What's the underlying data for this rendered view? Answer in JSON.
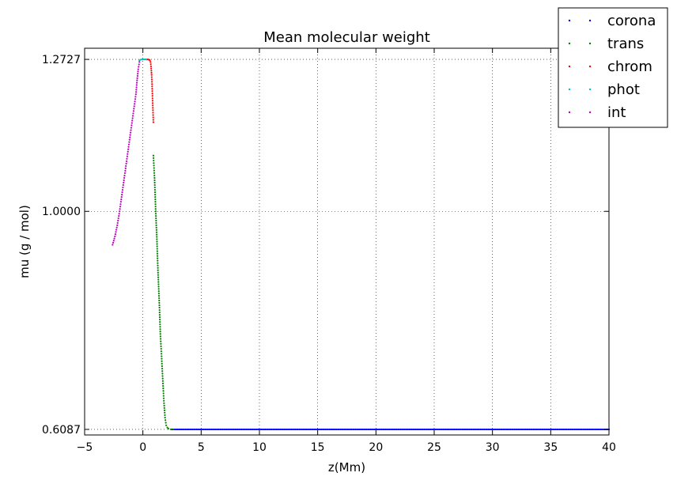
{
  "chart_data": {
    "type": "scatter",
    "title": "Mean molecular weight",
    "xlabel": "z(Mm)",
    "ylabel": "mu (g / mol)",
    "xlim": [
      -5,
      40
    ],
    "ylim": [
      0.5987,
      1.2927
    ],
    "x_ticks": [
      -5,
      0,
      5,
      10,
      15,
      20,
      25,
      30,
      35,
      40
    ],
    "x_tick_labels": [
      "−5",
      "0",
      "5",
      "10",
      "15",
      "20",
      "25",
      "30",
      "35",
      "40"
    ],
    "y_ticks": [
      0.6087,
      1.0,
      1.2727
    ],
    "y_tick_labels": [
      "0.6087",
      "1.0000",
      "1.2727"
    ],
    "grid": true,
    "legend_position": "top-right",
    "series": [
      {
        "name": "corona",
        "color": "#0000ff",
        "x": [
          2.5,
          40
        ],
        "y": [
          0.6087,
          0.6087
        ],
        "n_points": 320
      },
      {
        "name": "trans",
        "color": "#008000",
        "x": [
          0.9,
          1.0,
          1.1,
          1.2,
          1.3,
          1.4,
          1.5,
          1.6,
          1.7,
          1.8,
          1.9,
          2.0,
          2.1,
          2.2,
          2.4,
          2.6
        ],
        "y": [
          1.1,
          1.06,
          1.0,
          0.95,
          0.89,
          0.84,
          0.78,
          0.74,
          0.7,
          0.66,
          0.63,
          0.616,
          0.612,
          0.61,
          0.6089,
          0.6087
        ]
      },
      {
        "name": "chrom",
        "color": "#ff0000",
        "x": [
          0.35,
          0.45,
          0.55,
          0.6,
          0.65,
          0.7,
          0.75,
          0.8,
          0.85,
          0.9
        ],
        "y": [
          1.2727,
          1.2725,
          1.272,
          1.271,
          1.268,
          1.26,
          1.245,
          1.22,
          1.19,
          1.16
        ]
      },
      {
        "name": "phot",
        "color": "#00bfbf",
        "x": [
          -0.3,
          -0.2,
          -0.1,
          0.0,
          0.1,
          0.2,
          0.3
        ],
        "y": [
          1.271,
          1.272,
          1.2727,
          1.2727,
          1.2727,
          1.2727,
          1.2727
        ]
      },
      {
        "name": "int",
        "color": "#bf00bf",
        "x": [
          -2.6,
          -2.4,
          -2.2,
          -2.0,
          -1.8,
          -1.6,
          -1.4,
          -1.2,
          -1.0,
          -0.8,
          -0.6,
          -0.5,
          -0.4,
          -0.3
        ],
        "y": [
          0.94,
          0.955,
          0.975,
          1.0,
          1.03,
          1.06,
          1.09,
          1.12,
          1.15,
          1.18,
          1.21,
          1.235,
          1.255,
          1.268
        ]
      }
    ]
  }
}
